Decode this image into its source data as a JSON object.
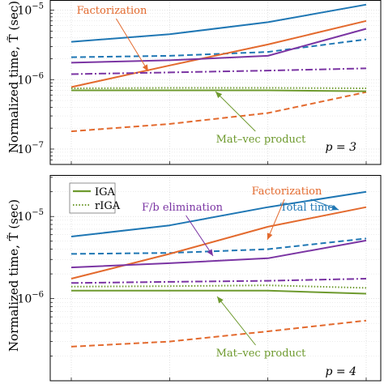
{
  "ylabel": "Normalized time, T̃ (sec)",
  "colors": {
    "total": "#1f77b4",
    "factorization": "#e36a2e",
    "fb": "#7b35a3",
    "matvec": "#6e9a2e",
    "grid": "#d9d9d9"
  },
  "chart_data": [
    {
      "type": "line",
      "panel_label": "p = 3",
      "yscale": "log",
      "ylim": [
        6e-08,
        1.4e-05
      ],
      "x": [
        1,
        2,
        3,
        4
      ],
      "yticks": [
        {
          "value": 1e-07,
          "base": "10",
          "exp": "−7"
        },
        {
          "value": 1e-06,
          "base": "10",
          "exp": "−6"
        },
        {
          "value": 1e-05,
          "base": "10",
          "exp": "−5"
        }
      ],
      "series": [
        {
          "group": "total",
          "method": "IGA",
          "values": [
            3.5e-06,
            4.5e-06,
            6.7e-06,
            1.2e-05
          ]
        },
        {
          "group": "total",
          "method": "rIGA",
          "values": [
            2.1e-06,
            2.2e-06,
            2.5e-06,
            3.8e-06
          ]
        },
        {
          "group": "factorization",
          "method": "IGA",
          "values": [
            7.8e-07,
            1.6e-06,
            3.2e-06,
            7e-06
          ]
        },
        {
          "group": "factorization",
          "method": "rIGA",
          "values": [
            1.8e-07,
            2.3e-07,
            3.3e-07,
            6.6e-07
          ]
        },
        {
          "group": "fb",
          "method": "IGA",
          "values": [
            1.75e-06,
            1.9e-06,
            2.2e-06,
            5.4e-06
          ]
        },
        {
          "group": "fb",
          "method": "rIGA",
          "values": [
            1.2e-06,
            1.27e-06,
            1.35e-06,
            1.45e-06
          ]
        },
        {
          "group": "matvec",
          "method": "IGA",
          "values": [
            7e-07,
            7e-07,
            7e-07,
            6.8e-07
          ]
        },
        {
          "group": "matvec",
          "method": "rIGA",
          "values": [
            7.5e-07,
            7.6e-07,
            7.6e-07,
            7.5e-07
          ]
        }
      ],
      "annotations": [
        {
          "text": "Factorization",
          "group": "factorization"
        },
        {
          "text": "Mat–vec product",
          "group": "matvec"
        }
      ]
    },
    {
      "type": "line",
      "panel_label": "p = 4",
      "yscale": "log",
      "ylim": [
        1e-07,
        3.2e-05
      ],
      "x": [
        1,
        2,
        3,
        4
      ],
      "yticks": [
        {
          "value": 1e-07,
          "base": "10",
          "exp": "−7"
        },
        {
          "value": 1e-06,
          "base": "10",
          "exp": "−6"
        },
        {
          "value": 1e-05,
          "base": "10",
          "exp": "−5"
        }
      ],
      "legend": [
        {
          "label": "IGA",
          "style": "solid"
        },
        {
          "label": "rIGA",
          "style": "dotted"
        }
      ],
      "series": [
        {
          "group": "total",
          "method": "IGA",
          "values": [
            5.7e-06,
            7.8e-06,
            1.3e-05,
            2e-05
          ]
        },
        {
          "group": "total",
          "method": "rIGA",
          "values": [
            3.5e-06,
            3.6e-06,
            4e-06,
            5.4e-06
          ]
        },
        {
          "group": "factorization",
          "method": "IGA",
          "values": [
            1.75e-06,
            3.5e-06,
            7.5e-06,
            1.3e-05
          ]
        },
        {
          "group": "factorization",
          "method": "rIGA",
          "values": [
            2.6e-07,
            3e-07,
            4e-07,
            5.4e-07
          ]
        },
        {
          "group": "fb",
          "method": "IGA",
          "values": [
            2.4e-06,
            2.7e-06,
            3.1e-06,
            5.1e-06
          ]
        },
        {
          "group": "fb",
          "method": "rIGA",
          "values": [
            1.55e-06,
            1.6e-06,
            1.65e-06,
            1.75e-06
          ]
        },
        {
          "group": "matvec",
          "method": "IGA",
          "values": [
            1.25e-06,
            1.25e-06,
            1.25e-06,
            1.15e-06
          ]
        },
        {
          "group": "matvec",
          "method": "rIGA",
          "values": [
            1.4e-06,
            1.42e-06,
            1.45e-06,
            1.35e-06
          ]
        }
      ],
      "annotations": [
        {
          "text": "Total time",
          "group": "total"
        },
        {
          "text": "Factorization",
          "group": "factorization"
        },
        {
          "text": "F/b elimination",
          "group": "fb"
        },
        {
          "text": "Mat–vec product",
          "group": "matvec"
        }
      ]
    }
  ]
}
